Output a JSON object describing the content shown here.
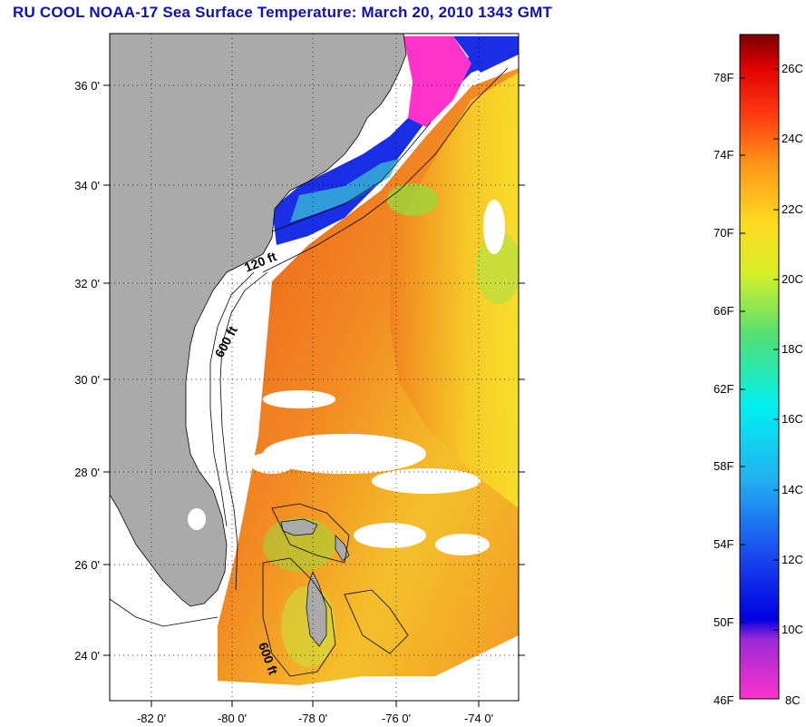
{
  "title": "RU COOL  NOAA-17  Sea Surface Temperature:  March 20, 2010 1343 GMT",
  "map": {
    "lat_labels": [
      "36 0'",
      "34 0'",
      "32 0'",
      "30 0'",
      "28 0'",
      "26 0'",
      "24 0'"
    ],
    "lon_labels": [
      "-82 0'",
      "-80 0'",
      "-78 0'",
      "-76 0'",
      "-74 0'"
    ],
    "contour_labels": [
      "120 ft",
      "600 ft",
      "600 ft"
    ],
    "colors": {
      "land": "#aaaaaa",
      "no_data": "#ffffff",
      "cold_coastal": "#1a2ee6",
      "very_cold": "#ff33cc",
      "warm": "#f06a20",
      "gulf_stream": "#f7d423"
    }
  },
  "colorbar": {
    "fahrenheit_labels": [
      "78F",
      "74F",
      "70F",
      "66F",
      "62F",
      "58F",
      "54F",
      "50F",
      "46F"
    ],
    "celsius_labels": [
      "26C",
      "24C",
      "22C",
      "20C",
      "18C",
      "16C",
      "14C",
      "12C",
      "10C",
      "8C"
    ]
  }
}
